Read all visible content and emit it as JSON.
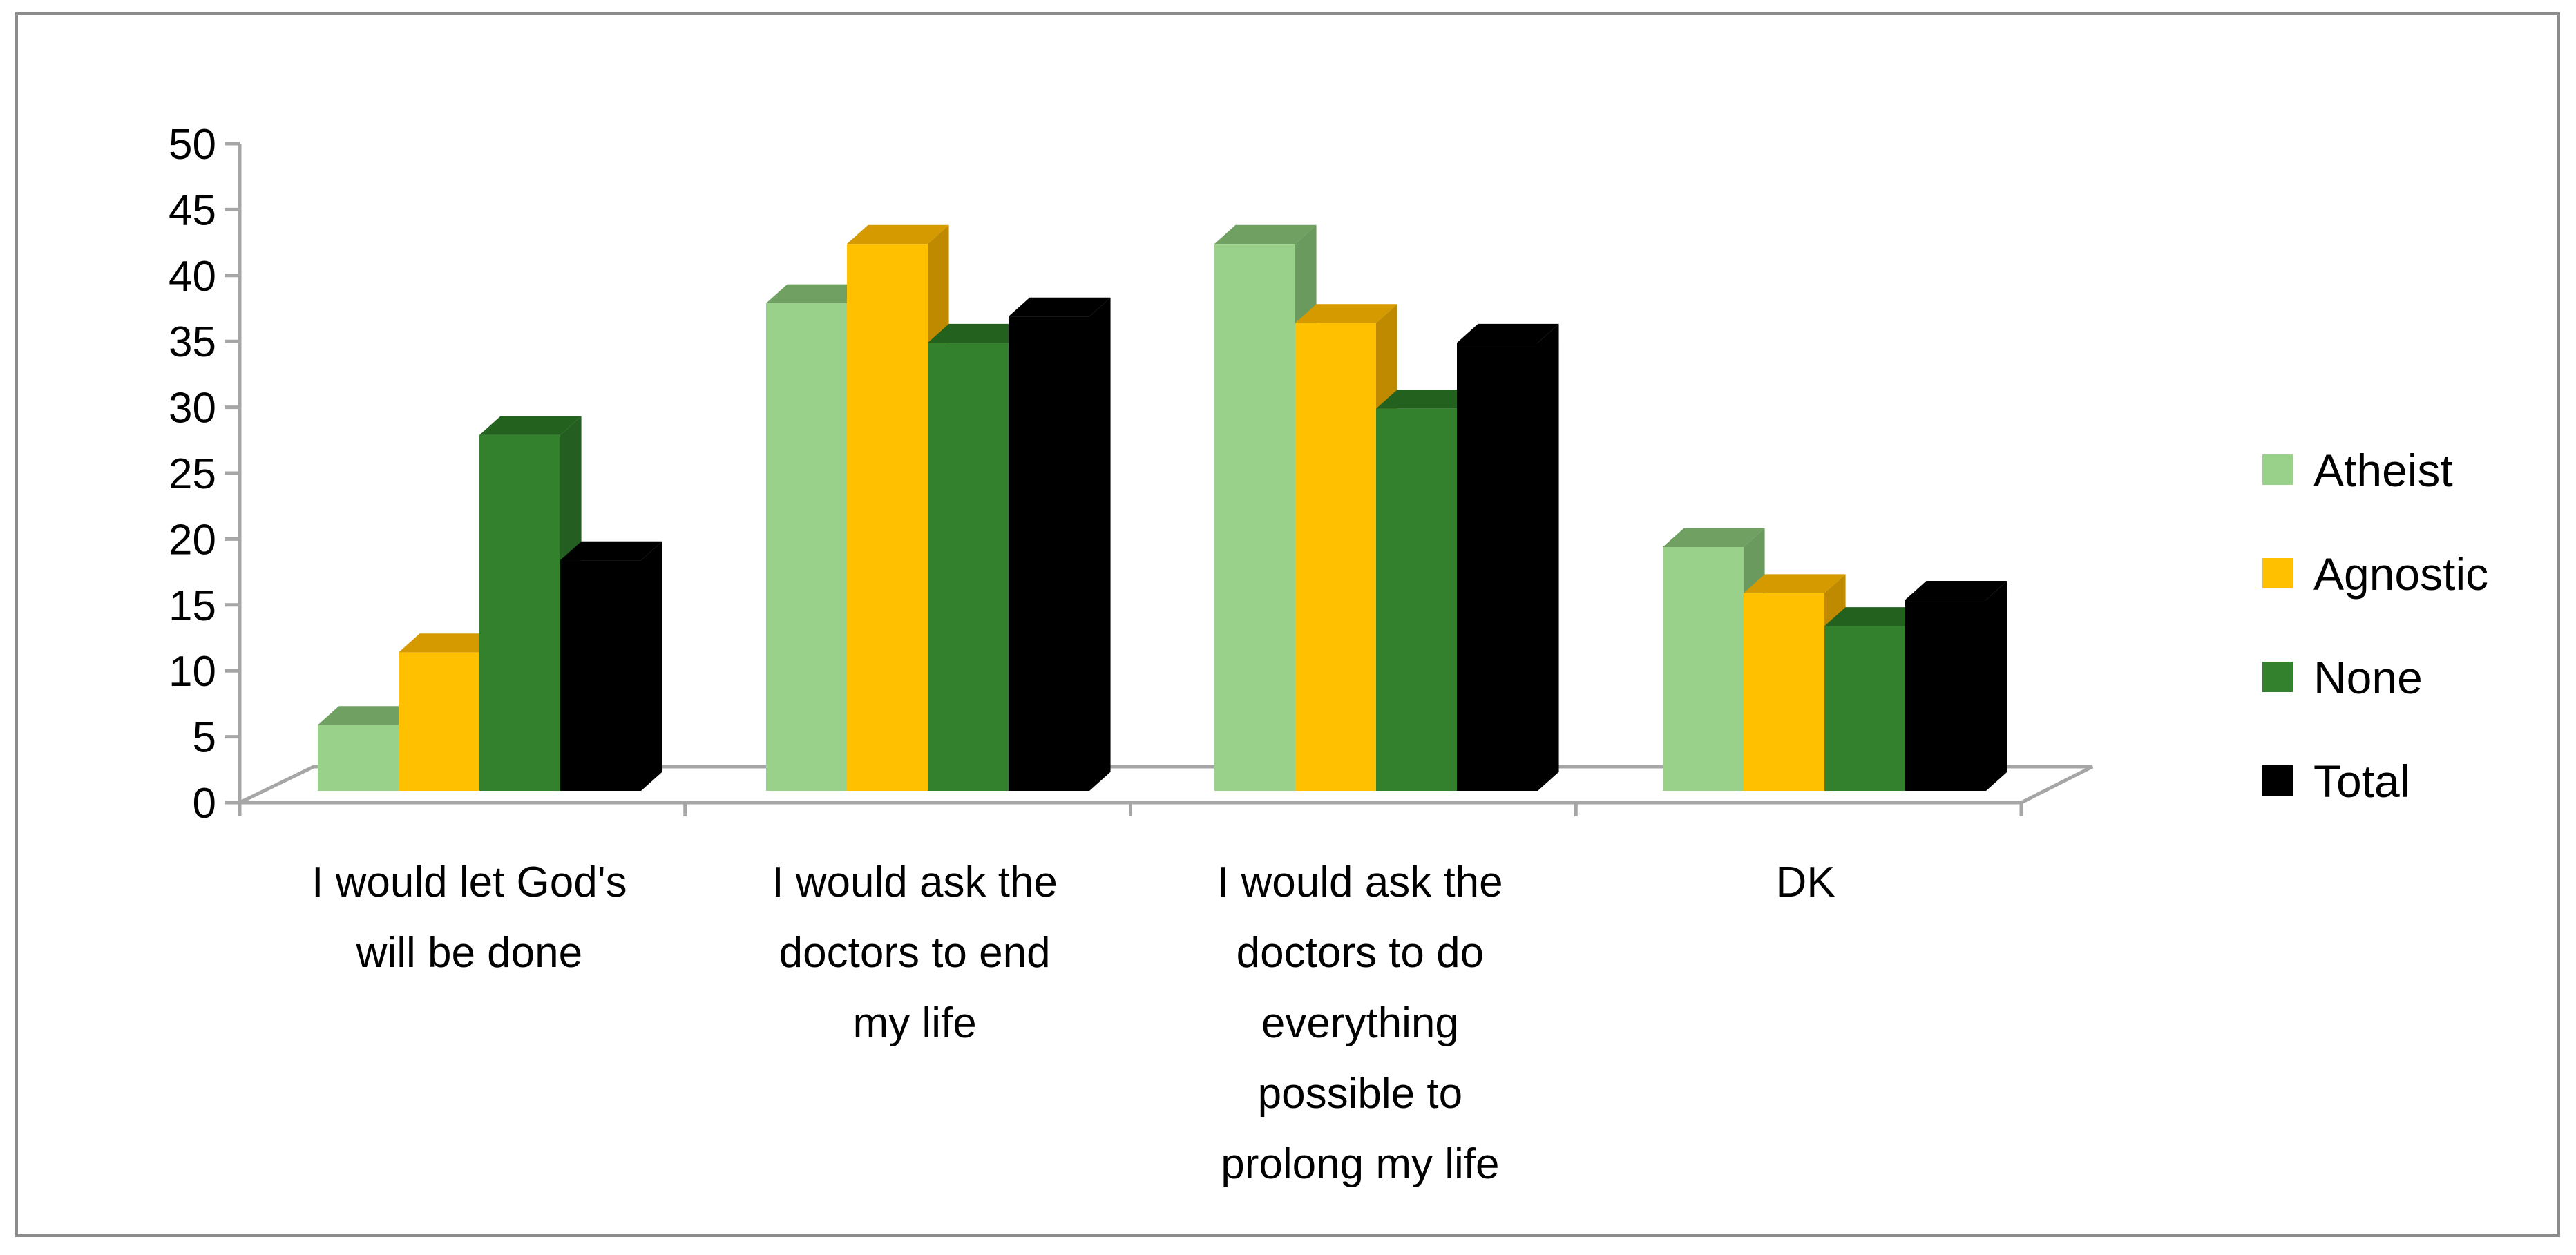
{
  "chart_data": {
    "type": "bar",
    "style": "3d-clustered-column",
    "categories": [
      [
        "I would let God's",
        "will be done"
      ],
      [
        "I would ask the",
        "doctors to end",
        "my life"
      ],
      [
        "I would ask the",
        "doctors to do",
        "everything",
        "possible to",
        "prolong my life"
      ],
      [
        "DK"
      ]
    ],
    "series": [
      {
        "name": "Atheist",
        "color": "#99d18a",
        "top": "#70a062",
        "side": "#6a9a5e",
        "values": [
          5,
          37,
          41.5,
          18.5
        ]
      },
      {
        "name": "Agnostic",
        "color": "#ffc000",
        "top": "#d49a00",
        "side": "#c08a00",
        "values": [
          10.5,
          41.5,
          35.5,
          15
        ]
      },
      {
        "name": "None",
        "color": "#33812d",
        "top": "#23611f",
        "side": "#245e20",
        "values": [
          27,
          34,
          29,
          12.5
        ]
      },
      {
        "name": "Total",
        "color": "#000000",
        "top": "#000000",
        "side": "#000000",
        "values": [
          17.5,
          36,
          34,
          14.5
        ]
      }
    ],
    "ylim": [
      0,
      50
    ],
    "yticks": [
      0,
      5,
      10,
      15,
      20,
      25,
      30,
      35,
      40,
      45,
      50
    ],
    "title": "",
    "xlabel": "",
    "ylabel": "",
    "grid": false,
    "legend_position": "right"
  }
}
